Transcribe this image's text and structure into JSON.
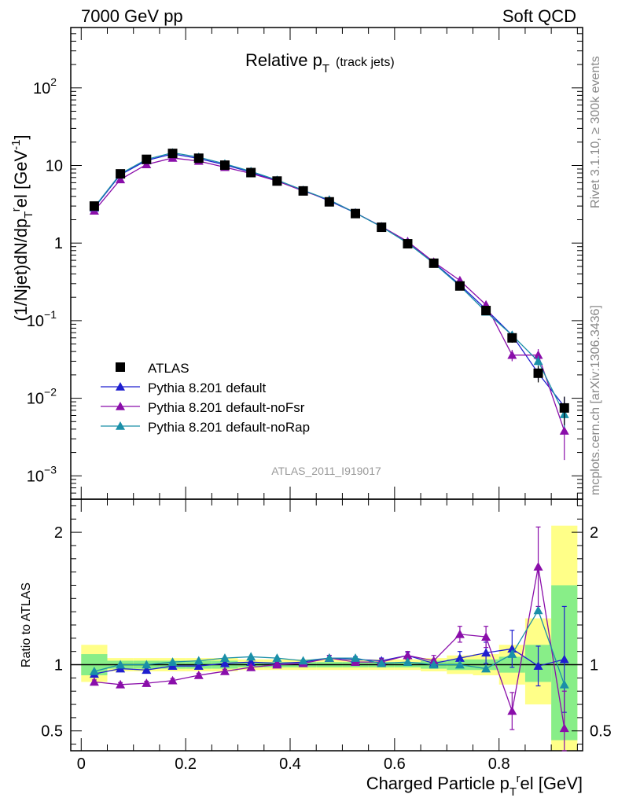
{
  "header": {
    "left": "7000 GeV pp",
    "right": "Soft QCD"
  },
  "side_labels": {
    "rivet": "Rivet 3.1.10, ≥ 300k events",
    "mcplots": "mcplots.cern.ch [arXiv:1306.3436]"
  },
  "chart_data": [
    {
      "type": "line",
      "title_main": "Relative p",
      "title_sub": "T",
      "title_tail": "(track jets)",
      "watermark": "ATLAS_2011_I919017",
      "ylabel": "(1/Njet)dN/dp",
      "ylabel_sub": "T",
      "ylabel_sup": "r",
      "ylabel_tail": "el [GeV",
      "ylabel_unit_sup": "-1",
      "ylabel_close": "]",
      "yscale": "log",
      "ylim": [
        0.0005,
        600
      ],
      "xlim": [
        -0.02,
        0.96
      ],
      "ytick_labels": [
        {
          "value": 0.001,
          "base": "10",
          "exp": "−3"
        },
        {
          "value": 0.01,
          "base": "10",
          "exp": "−2"
        },
        {
          "value": 0.1,
          "base": "10",
          "exp": "−1"
        },
        {
          "value": 1,
          "base": "1",
          "exp": ""
        },
        {
          "value": 10,
          "base": "10",
          "exp": ""
        },
        {
          "value": 100,
          "base": "10",
          "exp": "2"
        }
      ],
      "legend_position": "lower-left",
      "x": [
        0.025,
        0.075,
        0.125,
        0.175,
        0.225,
        0.275,
        0.325,
        0.375,
        0.425,
        0.475,
        0.525,
        0.575,
        0.625,
        0.675,
        0.725,
        0.775,
        0.825,
        0.875,
        0.925
      ],
      "series": [
        {
          "name": "ATLAS",
          "color": "#000000",
          "marker": "square",
          "values": [
            3.0,
            7.8,
            12.0,
            14.3,
            12.4,
            10.1,
            8.1,
            6.3,
            4.7,
            3.4,
            2.4,
            1.6,
            0.98,
            0.55,
            0.28,
            0.135,
            0.06,
            0.021,
            0.0075
          ],
          "err_lo": [
            0.2,
            0.4,
            0.5,
            0.6,
            0.5,
            0.4,
            0.3,
            0.25,
            0.2,
            0.15,
            0.1,
            0.08,
            0.05,
            0.03,
            0.02,
            0.012,
            0.008,
            0.005,
            0.003
          ],
          "err_hi": [
            0.2,
            0.4,
            0.5,
            0.6,
            0.5,
            0.4,
            0.3,
            0.25,
            0.2,
            0.15,
            0.1,
            0.08,
            0.05,
            0.03,
            0.02,
            0.012,
            0.008,
            0.005,
            0.003
          ]
        },
        {
          "name": "Pythia 8.201 default",
          "color": "#1f1fcf",
          "marker": "triangle",
          "values": [
            2.85,
            7.6,
            11.6,
            14.1,
            12.3,
            10.2,
            8.2,
            6.4,
            4.8,
            3.5,
            2.45,
            1.63,
            1.04,
            0.56,
            0.29,
            0.14,
            0.065,
            0.021,
            0.0078
          ],
          "err_lo": [
            0.05,
            0.1,
            0.15,
            0.15,
            0.15,
            0.12,
            0.1,
            0.08,
            0.06,
            0.05,
            0.04,
            0.03,
            0.02,
            0.012,
            0.008,
            0.006,
            0.006,
            0.004,
            0.0025
          ],
          "err_hi": [
            0.05,
            0.1,
            0.15,
            0.15,
            0.15,
            0.12,
            0.1,
            0.08,
            0.06,
            0.05,
            0.04,
            0.03,
            0.02,
            0.012,
            0.008,
            0.006,
            0.006,
            0.004,
            0.0025
          ]
        },
        {
          "name": "Pythia 8.201 default-noFsr",
          "color": "#8a0eaa",
          "marker": "triangle",
          "values": [
            2.6,
            6.6,
            10.3,
            12.5,
            11.4,
            9.5,
            7.9,
            6.3,
            4.7,
            3.6,
            2.45,
            1.63,
            1.05,
            0.57,
            0.33,
            0.16,
            0.036,
            0.036,
            0.0038
          ],
          "err_lo": [
            0.05,
            0.1,
            0.15,
            0.15,
            0.15,
            0.12,
            0.1,
            0.08,
            0.06,
            0.05,
            0.04,
            0.03,
            0.02,
            0.015,
            0.012,
            0.01,
            0.006,
            0.007,
            0.0022
          ],
          "err_hi": [
            0.05,
            0.1,
            0.15,
            0.15,
            0.15,
            0.12,
            0.1,
            0.08,
            0.06,
            0.05,
            0.04,
            0.03,
            0.02,
            0.015,
            0.012,
            0.01,
            0.006,
            0.007,
            0.0022
          ]
        },
        {
          "name": "Pythia 8.201 default-noRap",
          "color": "#1a8fa8",
          "marker": "triangle",
          "values": [
            2.9,
            7.8,
            12.0,
            14.6,
            12.8,
            10.5,
            8.4,
            6.5,
            4.8,
            3.6,
            2.45,
            1.62,
            1.0,
            0.55,
            0.28,
            0.13,
            0.065,
            0.03,
            0.0062
          ],
          "err_lo": [
            0.05,
            0.1,
            0.15,
            0.15,
            0.15,
            0.12,
            0.1,
            0.08,
            0.06,
            0.05,
            0.04,
            0.03,
            0.02,
            0.012,
            0.008,
            0.006,
            0.006,
            0.005,
            0.002
          ],
          "err_hi": [
            0.05,
            0.1,
            0.15,
            0.15,
            0.15,
            0.12,
            0.1,
            0.08,
            0.06,
            0.05,
            0.04,
            0.03,
            0.02,
            0.012,
            0.008,
            0.006,
            0.006,
            0.005,
            0.002
          ]
        }
      ]
    },
    {
      "type": "line",
      "ylabel": "Ratio to ATLAS",
      "xlabel": "Charged Particle p",
      "xlabel_sub": "T",
      "xlabel_sup": "r",
      "xlabel_tail": "el [GeV]",
      "ylim": [
        0.35,
        2.25
      ],
      "xlim": [
        -0.02,
        0.96
      ],
      "reference_line": 1,
      "ytick_labels": [
        "0.5",
        "1",
        "2"
      ],
      "ytick_values": [
        0.5,
        1,
        2
      ],
      "xtick_labels": [
        "0",
        "0.2",
        "0.4",
        "0.6",
        "0.8"
      ],
      "xtick_values": [
        0,
        0.2,
        0.4,
        0.6,
        0.8
      ],
      "band_edges": [
        0.0,
        0.05,
        0.1,
        0.15,
        0.2,
        0.25,
        0.3,
        0.35,
        0.4,
        0.45,
        0.5,
        0.55,
        0.6,
        0.65,
        0.7,
        0.75,
        0.8,
        0.85,
        0.9,
        0.95
      ],
      "band_outer": [
        [
          0.87,
          1.15
        ],
        [
          0.95,
          1.05
        ],
        [
          0.95,
          1.05
        ],
        [
          0.95,
          1.05
        ],
        [
          0.95,
          1.05
        ],
        [
          0.95,
          1.05
        ],
        [
          0.96,
          1.04
        ],
        [
          0.96,
          1.04
        ],
        [
          0.96,
          1.04
        ],
        [
          0.96,
          1.04
        ],
        [
          0.96,
          1.04
        ],
        [
          0.96,
          1.04
        ],
        [
          0.96,
          1.04
        ],
        [
          0.95,
          1.05
        ],
        [
          0.93,
          1.07
        ],
        [
          0.92,
          1.08
        ],
        [
          0.85,
          1.15
        ],
        [
          0.7,
          1.35
        ],
        [
          0.35,
          2.05
        ]
      ],
      "band_inner": [
        [
          0.92,
          1.08
        ],
        [
          0.97,
          1.03
        ],
        [
          0.97,
          1.03
        ],
        [
          0.97,
          1.03
        ],
        [
          0.97,
          1.03
        ],
        [
          0.97,
          1.03
        ],
        [
          0.98,
          1.02
        ],
        [
          0.98,
          1.02
        ],
        [
          0.98,
          1.02
        ],
        [
          0.98,
          1.02
        ],
        [
          0.98,
          1.02
        ],
        [
          0.98,
          1.02
        ],
        [
          0.98,
          1.02
        ],
        [
          0.97,
          1.03
        ],
        [
          0.96,
          1.04
        ],
        [
          0.96,
          1.04
        ],
        [
          0.94,
          1.06
        ],
        [
          0.87,
          1.15
        ],
        [
          0.43,
          1.6
        ]
      ],
      "band_colors": {
        "outer": "#ffff88",
        "inner": "#88ee88"
      },
      "x": [
        0.025,
        0.075,
        0.125,
        0.175,
        0.225,
        0.275,
        0.325,
        0.375,
        0.425,
        0.475,
        0.525,
        0.575,
        0.625,
        0.675,
        0.725,
        0.775,
        0.825,
        0.875,
        0.925
      ],
      "series": [
        {
          "name": "Pythia 8.201 default",
          "color": "#1f1fcf",
          "values": [
            0.93,
            0.97,
            0.96,
            0.99,
            0.99,
            1.01,
            1.02,
            1.01,
            1.02,
            1.05,
            1.04,
            1.03,
            1.07,
            1.01,
            1.05,
            1.09,
            1.12,
            0.99,
            1.04
          ],
          "err": [
            0.02,
            0.015,
            0.015,
            0.015,
            0.015,
            0.015,
            0.015,
            0.015,
            0.015,
            0.02,
            0.02,
            0.02,
            0.025,
            0.03,
            0.05,
            0.08,
            0.14,
            0.15,
            0.4
          ]
        },
        {
          "name": "Pythia 8.201 default-noFsr",
          "color": "#8a0eaa",
          "values": [
            0.87,
            0.85,
            0.86,
            0.88,
            0.92,
            0.95,
            0.98,
            1.0,
            1.01,
            1.05,
            1.02,
            1.02,
            1.07,
            1.03,
            1.23,
            1.21,
            0.65,
            1.74,
            0.52
          ],
          "err": [
            0.015,
            0.015,
            0.015,
            0.015,
            0.015,
            0.015,
            0.015,
            0.015,
            0.02,
            0.02,
            0.02,
            0.025,
            0.03,
            0.04,
            0.06,
            0.08,
            0.14,
            0.3,
            0.28
          ]
        },
        {
          "name": "Pythia 8.201 default-noRap",
          "color": "#1a8fa8",
          "values": [
            0.95,
            1.0,
            1.0,
            1.02,
            1.03,
            1.05,
            1.06,
            1.05,
            1.03,
            1.05,
            1.05,
            1.01,
            1.02,
            1.0,
            1.0,
            0.97,
            1.08,
            1.41,
            0.85
          ]
        }
      ]
    }
  ]
}
